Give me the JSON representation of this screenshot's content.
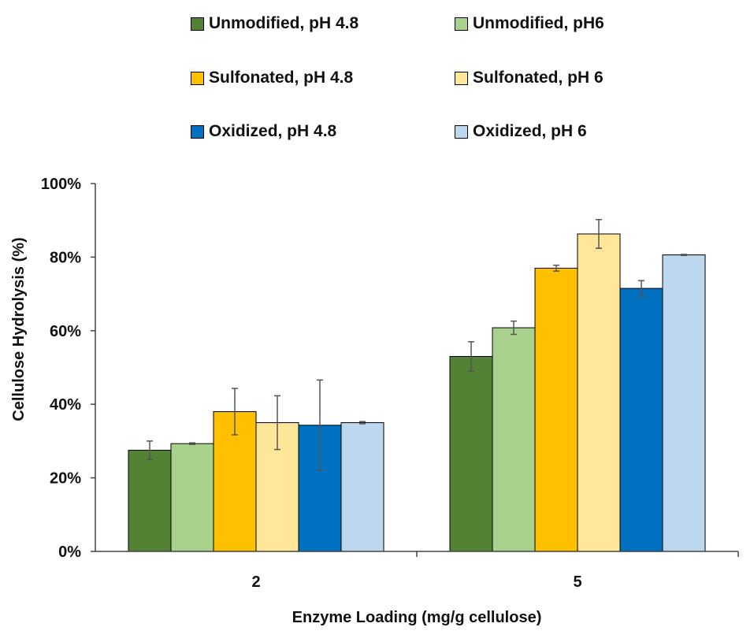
{
  "chart_data": {
    "type": "bar",
    "title": "",
    "xlabel": "Enzyme Loading (mg/g cellulose)",
    "ylabel": "Cellulose Hydrolysis (%)",
    "categories": [
      "2",
      "5"
    ],
    "ylim": [
      0,
      100
    ],
    "yticks": [
      0,
      20,
      40,
      60,
      80,
      100
    ],
    "ytick_labels": [
      "0%",
      "20%",
      "40%",
      "60%",
      "80%",
      "100%"
    ],
    "grid": false,
    "legend_position": "top",
    "series": [
      {
        "name": "Unmodified, pH 4.8",
        "color": "#548235",
        "values": [
          27.5,
          53.0
        ],
        "errors": [
          2.5,
          4.0
        ]
      },
      {
        "name": "Unmodified, pH6",
        "color": "#a9d18e",
        "values": [
          29.3,
          60.8
        ],
        "errors": [
          0.2,
          1.8
        ]
      },
      {
        "name": "Sulfonated, pH 4.8",
        "color": "#ffc000",
        "values": [
          38.0,
          77.0
        ],
        "errors": [
          6.3,
          0.8
        ]
      },
      {
        "name": "Sulfonated, pH 6",
        "color": "#ffe699",
        "values": [
          35.0,
          86.3
        ],
        "errors": [
          7.3,
          3.9
        ]
      },
      {
        "name": "Oxidized, pH 4.8",
        "color": "#0070c0",
        "values": [
          34.3,
          71.5
        ],
        "errors": [
          12.3,
          2.1
        ]
      },
      {
        "name": "Oxidized, pH 6",
        "color": "#bdd7ee",
        "values": [
          35.0,
          80.6
        ],
        "errors": [
          0.3,
          0.15
        ]
      }
    ]
  }
}
